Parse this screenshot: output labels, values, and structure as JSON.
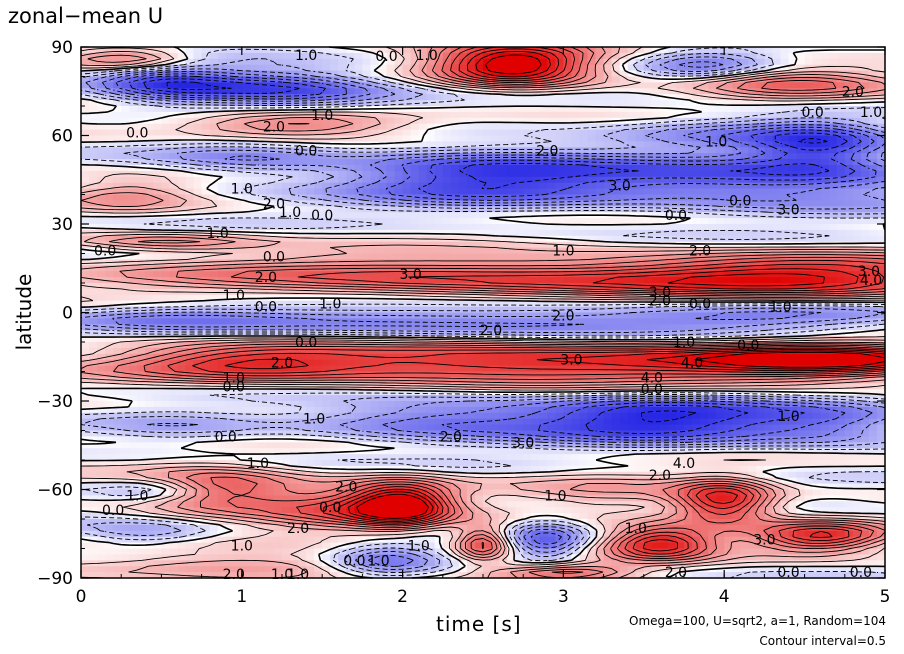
{
  "chart_data": {
    "type": "heatmap",
    "title": "zonal−mean U",
    "xlabel": "time [s]",
    "ylabel": "latitude",
    "xlim": [
      0,
      5
    ],
    "ylim": [
      -90,
      90
    ],
    "x_ticks": [
      0,
      1,
      2,
      3,
      4,
      5
    ],
    "x_tick_labels": [
      "0",
      "1",
      "2",
      "3",
      "4",
      "5"
    ],
    "y_ticks": [
      90,
      60,
      30,
      0,
      -30,
      -60,
      -90
    ],
    "y_tick_labels": [
      "90",
      "60",
      "30",
      "0",
      "−30",
      "−60",
      "−90"
    ],
    "annotation_lines": [
      "Omega=100, U=sqrt2, a=1, Random=104",
      "Contour interval=0.5"
    ],
    "colors": {
      "positive": "#e00000",
      "negative": "#0000e0",
      "zero": "#ffffff"
    },
    "contour_labels": [
      {
        "x": 0.35,
        "y": 61,
        "text": "0.0"
      },
      {
        "x": 1.2,
        "y": 63,
        "text": "2.0"
      },
      {
        "x": 1.4,
        "y": 55,
        "text": "0.0"
      },
      {
        "x": 1.0,
        "y": 42,
        "text": "1.0"
      },
      {
        "x": 1.2,
        "y": 37,
        "text": "2.0"
      },
      {
        "x": 1.3,
        "y": 34,
        "text": "1.0"
      },
      {
        "x": 1.5,
        "y": 33,
        "text": "0.0"
      },
      {
        "x": 0.85,
        "y": 27,
        "text": "1.0"
      },
      {
        "x": 2.9,
        "y": 55,
        "text": "2.0"
      },
      {
        "x": 3.35,
        "y": 43,
        "text": "3.0"
      },
      {
        "x": 3.95,
        "y": 58,
        "text": "1.0"
      },
      {
        "x": 4.4,
        "y": 35,
        "text": "3.0"
      },
      {
        "x": 3.7,
        "y": 33,
        "text": "0.0"
      },
      {
        "x": 4.1,
        "y": 38,
        "text": "0.0"
      },
      {
        "x": 4.8,
        "y": 75,
        "text": "2.0"
      },
      {
        "x": 4.55,
        "y": 68,
        "text": "0.0"
      },
      {
        "x": 5.0,
        "y": 68,
        "text": "1.0"
      },
      {
        "x": 0.15,
        "y": 21,
        "text": "0.0"
      },
      {
        "x": 1.2,
        "y": 19,
        "text": "0.0"
      },
      {
        "x": 1.15,
        "y": 12,
        "text": "2.0"
      },
      {
        "x": 0.95,
        "y": 6,
        "text": "1.0"
      },
      {
        "x": 1.15,
        "y": 2,
        "text": "0.0"
      },
      {
        "x": 1.55,
        "y": 3,
        "text": "1.0"
      },
      {
        "x": 2.05,
        "y": 13,
        "text": "3.0"
      },
      {
        "x": 3.0,
        "y": 21,
        "text": "1.0"
      },
      {
        "x": 3.85,
        "y": 21,
        "text": "2.0"
      },
      {
        "x": 3.6,
        "y": 7,
        "text": "3.0"
      },
      {
        "x": 3.6,
        "y": 4,
        "text": "2.0"
      },
      {
        "x": 3.85,
        "y": 3,
        "text": "0.0"
      },
      {
        "x": 4.9,
        "y": 14,
        "text": "3.0"
      },
      {
        "x": 5.1,
        "y": 11,
        "text": "4.0"
      },
      {
        "x": 3.0,
        "y": -1,
        "text": "2.0"
      },
      {
        "x": 2.55,
        "y": -6,
        "text": "2.0"
      },
      {
        "x": 4.35,
        "y": 2,
        "text": "1.0"
      },
      {
        "x": 1.4,
        "y": -10,
        "text": "0.0"
      },
      {
        "x": 1.25,
        "y": -17,
        "text": "2.0"
      },
      {
        "x": 0.95,
        "y": -22,
        "text": "1.0"
      },
      {
        "x": 0.95,
        "y": -25,
        "text": "0.0"
      },
      {
        "x": 3.05,
        "y": -16,
        "text": "3.0"
      },
      {
        "x": 3.75,
        "y": -10,
        "text": "1.0"
      },
      {
        "x": 3.8,
        "y": -17,
        "text": "4.0"
      },
      {
        "x": 4.15,
        "y": -11,
        "text": "0.0"
      },
      {
        "x": 3.55,
        "y": -22,
        "text": "4.0"
      },
      {
        "x": 3.55,
        "y": -26,
        "text": "0.0"
      },
      {
        "x": 4.4,
        "y": -35,
        "text": "1.0"
      },
      {
        "x": 1.45,
        "y": -36,
        "text": "1.0"
      },
      {
        "x": 0.9,
        "y": -42,
        "text": "0.0"
      },
      {
        "x": 2.3,
        "y": -42,
        "text": "2.0"
      },
      {
        "x": 2.75,
        "y": -44,
        "text": "3.0"
      },
      {
        "x": 3.75,
        "y": -51,
        "text": "4.0"
      },
      {
        "x": 3.6,
        "y": -55,
        "text": "2.0"
      },
      {
        "x": 1.1,
        "y": -51,
        "text": "1.0"
      },
      {
        "x": 1.55,
        "y": -66,
        "text": "0.0"
      },
      {
        "x": 1.65,
        "y": -59,
        "text": "2.0"
      },
      {
        "x": 0.35,
        "y": -62,
        "text": "1.0"
      },
      {
        "x": 0.2,
        "y": -67,
        "text": "0.0"
      },
      {
        "x": 2.95,
        "y": -62,
        "text": "1.0"
      },
      {
        "x": 1.35,
        "y": -73,
        "text": "2.0"
      },
      {
        "x": 3.45,
        "y": -73,
        "text": "1.0"
      },
      {
        "x": 2.1,
        "y": -79,
        "text": "1.0"
      },
      {
        "x": 1.0,
        "y": -79,
        "text": "1.0"
      },
      {
        "x": 1.7,
        "y": -84,
        "text": "0.0"
      },
      {
        "x": 1.85,
        "y": -84,
        "text": "1.0"
      },
      {
        "x": 1.35,
        "y": -89,
        "text": "1.0"
      },
      {
        "x": 0.95,
        "y": -93,
        "text": "2.0"
      },
      {
        "x": 1.25,
        "y": -94,
        "text": "1.0"
      },
      {
        "x": 3.7,
        "y": -88,
        "text": "2.0"
      },
      {
        "x": 4.25,
        "y": -77,
        "text": "3.0"
      },
      {
        "x": 4.4,
        "y": -88,
        "text": "0.0"
      },
      {
        "x": 4.85,
        "y": -88,
        "text": "0.0"
      },
      {
        "x": 1.4,
        "y": 91,
        "text": "1.0"
      },
      {
        "x": 2.15,
        "y": 91,
        "text": "1.0"
      },
      {
        "x": 1.9,
        "y": 87,
        "text": "0.0"
      },
      {
        "x": 1.5,
        "y": 67,
        "text": "1.0"
      }
    ],
    "features": [
      {
        "x": 2.7,
        "y": 84,
        "value": 6,
        "sx": 0.35,
        "sy": 5
      },
      {
        "x": 0.5,
        "y": 78,
        "value": -2.5,
        "sx": 0.3,
        "sy": 5
      },
      {
        "x": 1.2,
        "y": 76,
        "value": -3.5,
        "sx": 0.5,
        "sy": 5
      },
      {
        "x": 0.3,
        "y": 86,
        "value": 3,
        "sx": 0.3,
        "sy": 2.5
      },
      {
        "x": 4.4,
        "y": 78,
        "value": 2.5,
        "sx": 0.45,
        "sy": 4
      },
      {
        "x": 3.9,
        "y": 84,
        "value": -2,
        "sx": 0.3,
        "sy": 4
      },
      {
        "x": 1.35,
        "y": 64,
        "value": 3,
        "sx": 0.5,
        "sy": 3
      },
      {
        "x": 4.0,
        "y": 62,
        "value": -1.5,
        "sx": 0.5,
        "sy": 4
      },
      {
        "x": 4.6,
        "y": 57,
        "value": -2.5,
        "sx": 0.3,
        "sy": 6
      },
      {
        "x": 2.5,
        "y": 46,
        "value": -3.5,
        "sx": 0.7,
        "sy": 7
      },
      {
        "x": 4.3,
        "y": 45,
        "value": -3,
        "sx": 0.8,
        "sy": 7
      },
      {
        "x": 1.0,
        "y": 52,
        "value": -1.5,
        "sx": 0.4,
        "sy": 4
      },
      {
        "x": 0.3,
        "y": 40,
        "value": 1.5,
        "sx": 0.3,
        "sy": 4
      },
      {
        "x": 0.5,
        "y": 24,
        "value": 2,
        "sx": 0.4,
        "sy": 2
      },
      {
        "x": 2.5,
        "y": 12,
        "value": 3.5,
        "sx": 1.4,
        "sy": 5
      },
      {
        "x": 4.6,
        "y": 12,
        "value": 3.5,
        "sx": 0.8,
        "sy": 5
      },
      {
        "x": 2.5,
        "y": -3,
        "value": -2.5,
        "sx": 1.4,
        "sy": 4.5
      },
      {
        "x": 4.4,
        "y": -1,
        "value": -1.2,
        "sx": 0.7,
        "sy": 3
      },
      {
        "x": 0.5,
        "y": -2,
        "value": -1,
        "sx": 0.5,
        "sy": 3
      },
      {
        "x": 2.8,
        "y": -17,
        "value": 4.5,
        "sx": 1.5,
        "sy": 5
      },
      {
        "x": 4.7,
        "y": -16,
        "value": 3.5,
        "sx": 0.6,
        "sy": 4
      },
      {
        "x": 1.0,
        "y": -17,
        "value": 2,
        "sx": 0.5,
        "sy": 4
      },
      {
        "x": 3.6,
        "y": -36,
        "value": -4,
        "sx": 0.6,
        "sy": 6
      },
      {
        "x": 2.2,
        "y": -36,
        "value": -2.5,
        "sx": 0.6,
        "sy": 5
      },
      {
        "x": 4.7,
        "y": -38,
        "value": -2,
        "sx": 0.4,
        "sy": 5
      },
      {
        "x": 0.6,
        "y": -40,
        "value": -1,
        "sx": 0.4,
        "sy": 5
      },
      {
        "x": 2.0,
        "y": -65,
        "value": 5,
        "sx": 0.22,
        "sy": 5
      },
      {
        "x": 4.0,
        "y": -64,
        "value": 4.5,
        "sx": 0.22,
        "sy": 5
      },
      {
        "x": 1.6,
        "y": -66,
        "value": 2.5,
        "sx": 0.4,
        "sy": 6
      },
      {
        "x": 0.8,
        "y": -60,
        "value": 3.5,
        "sx": 0.35,
        "sy": 5
      },
      {
        "x": 3.3,
        "y": -62,
        "value": 1.2,
        "sx": 0.4,
        "sy": 5
      },
      {
        "x": 0.5,
        "y": -60,
        "value": -2,
        "sx": 0.25,
        "sy": 3
      },
      {
        "x": 3.6,
        "y": -78,
        "value": 4.5,
        "sx": 0.25,
        "sy": 4
      },
      {
        "x": 4.6,
        "y": -76,
        "value": 4,
        "sx": 0.3,
        "sy": 3.5
      },
      {
        "x": 2.5,
        "y": -78,
        "value": 3.5,
        "sx": 0.12,
        "sy": 4
      },
      {
        "x": 2.9,
        "y": -78,
        "value": -2.5,
        "sx": 0.18,
        "sy": 5
      },
      {
        "x": 1.9,
        "y": -84,
        "value": -2.5,
        "sx": 0.25,
        "sy": 4
      },
      {
        "x": 1.1,
        "y": -86,
        "value": 2,
        "sx": 0.6,
        "sy": 3
      },
      {
        "x": 0.4,
        "y": -75,
        "value": -1.5,
        "sx": 0.3,
        "sy": 3
      },
      {
        "x": 3.0,
        "y": -88,
        "value": 3,
        "sx": 0.3,
        "sy": 2
      }
    ]
  }
}
